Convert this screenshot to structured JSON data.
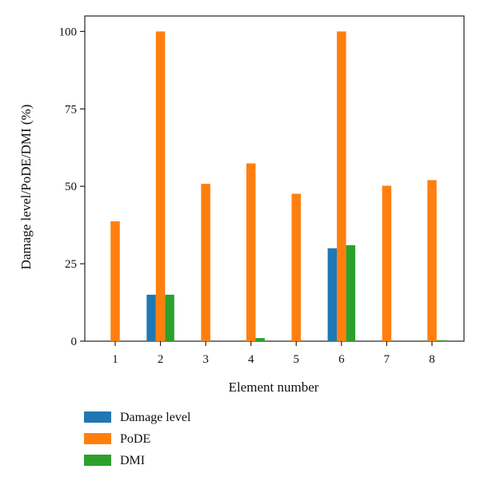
{
  "chart_data": {
    "type": "bar",
    "title": "",
    "xlabel": "Element number",
    "ylabel": "Damage level/PoDE/DMI (%)",
    "categories": [
      "1",
      "2",
      "3",
      "4",
      "5",
      "6",
      "7",
      "8"
    ],
    "ylim": [
      0,
      105
    ],
    "yticks": [
      0,
      25,
      50,
      75,
      100
    ],
    "grid": false,
    "legend_position": "bottom-left, below plot",
    "series": [
      {
        "name": "Damage level",
        "color": "#1f77b4",
        "values": [
          0,
          15,
          0,
          0,
          0,
          30,
          0,
          0
        ]
      },
      {
        "name": "PoDE",
        "color": "#ff7f0e",
        "values": [
          38.7,
          100,
          50.8,
          57.4,
          47.6,
          100,
          50.2,
          52
        ]
      },
      {
        "name": "DMI",
        "color": "#2ca02c",
        "values": [
          0,
          15,
          0,
          1,
          0,
          31,
          0,
          0.3
        ]
      }
    ]
  }
}
